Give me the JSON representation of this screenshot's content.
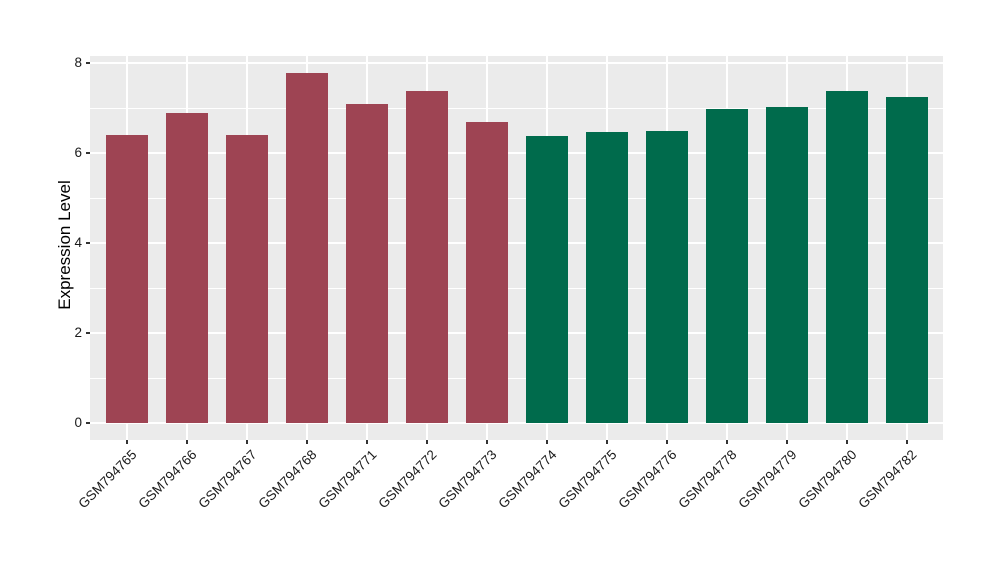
{
  "chart_data": {
    "type": "bar",
    "title": "",
    "ylabel": "Expression Level",
    "xlabel": "",
    "categories": [
      "GSM794765",
      "GSM794766",
      "GSM794767",
      "GSM794768",
      "GSM794771",
      "GSM794772",
      "GSM794773",
      "GSM794774",
      "GSM794775",
      "GSM794776",
      "GSM794778",
      "GSM794779",
      "GSM794780",
      "GSM794782"
    ],
    "values": [
      6.41,
      6.9,
      6.41,
      7.77,
      7.1,
      7.38,
      6.69,
      6.38,
      6.47,
      6.49,
      6.97,
      7.03,
      7.38,
      7.25
    ],
    "bar_colors": [
      "#9E4453",
      "#9E4453",
      "#9E4453",
      "#9E4453",
      "#9E4453",
      "#9E4453",
      "#9E4453",
      "#006B4C",
      "#006B4C",
      "#006B4C",
      "#006B4C",
      "#006B4C",
      "#006B4C",
      "#006B4C"
    ],
    "ylim": [
      0,
      8.15
    ],
    "yticks": [
      0,
      2,
      4,
      6,
      8
    ],
    "yticks_minor": [
      1,
      3,
      5,
      7
    ],
    "grid": true,
    "legend": false,
    "panel_background": "#EBEBEB",
    "gridline_color": "#FFFFFF",
    "axis_text_color": "#1a1a1a"
  }
}
